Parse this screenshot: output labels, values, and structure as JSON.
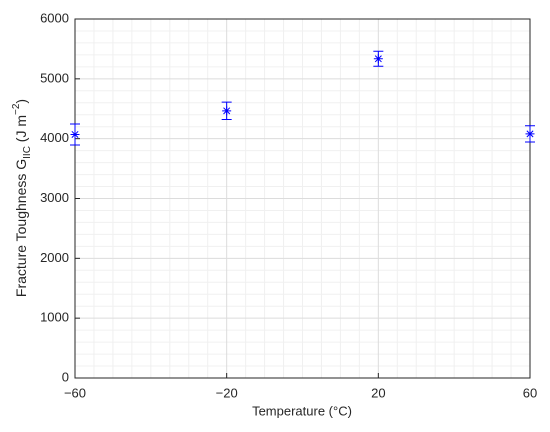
{
  "chart_data": {
    "type": "scatter",
    "xlabel": "Temperature (°C)",
    "ylabel": [
      "Fracture Toughness G",
      "IIC",
      " (J m",
      "−2",
      ")"
    ],
    "x": [
      -60,
      -20,
      20,
      60
    ],
    "values": [
      4070,
      4465,
      5335,
      4080
    ],
    "errors": [
      175,
      145,
      125,
      135
    ],
    "color": "#0000ff",
    "xlim": [
      -60,
      60
    ],
    "xticks": [
      {
        "value": -60,
        "label": "−60"
      },
      {
        "value": -20,
        "label": "−20"
      },
      20,
      60
    ],
    "ylim": [
      0,
      6000
    ],
    "yticks": [
      0,
      1000,
      2000,
      3000,
      4000,
      5000,
      6000
    ],
    "grid": true,
    "minor_grid": true
  }
}
